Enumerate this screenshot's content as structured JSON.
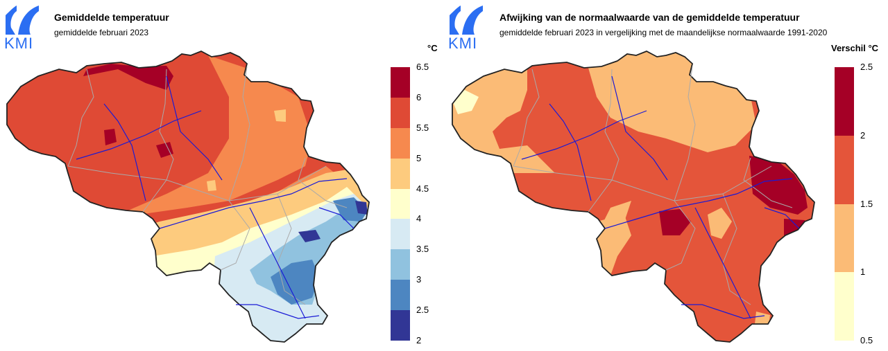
{
  "brand": {
    "logo_text": "KMI",
    "logo_color": "#2b6ef2"
  },
  "left_map": {
    "title": "Gemiddelde temperatuur",
    "subtitle": "gemiddelde februari 2023",
    "legend_unit": "°C",
    "legend": {
      "ticks": [
        "6.5",
        "6",
        "5.5",
        "5",
        "4.5",
        "4",
        "3.5",
        "3",
        "2.5",
        "2"
      ],
      "colors": [
        "#a50026",
        "#d73027",
        "#f46d43",
        "#fdae61",
        "#fee090",
        "#ffffbf",
        "#e0f3f8",
        "#abd9e9",
        "#74add1",
        "#4575b4",
        "#313695"
      ],
      "bin_colors": [
        "#a50026",
        "#df4a35",
        "#f6894e",
        "#fdcb7e",
        "#ffffcc",
        "#d7eaf3",
        "#90c2df",
        "#4d86c1",
        "#313695"
      ]
    }
  },
  "right_map": {
    "title": "Afwijking van de normaalwaarde van de gemiddelde temperatuur",
    "subtitle": "gemiddelde februari 2023 in vergelijking met de maandelijkse normaalwaarde 1991-2020",
    "legend_unit": "Verschil °C",
    "legend": {
      "ticks": [
        "2.5",
        "2",
        "1.5",
        "1",
        "0.5"
      ],
      "bin_colors": [
        "#a50026",
        "#e4553a",
        "#fbbb76",
        "#ffffcc"
      ]
    }
  }
}
